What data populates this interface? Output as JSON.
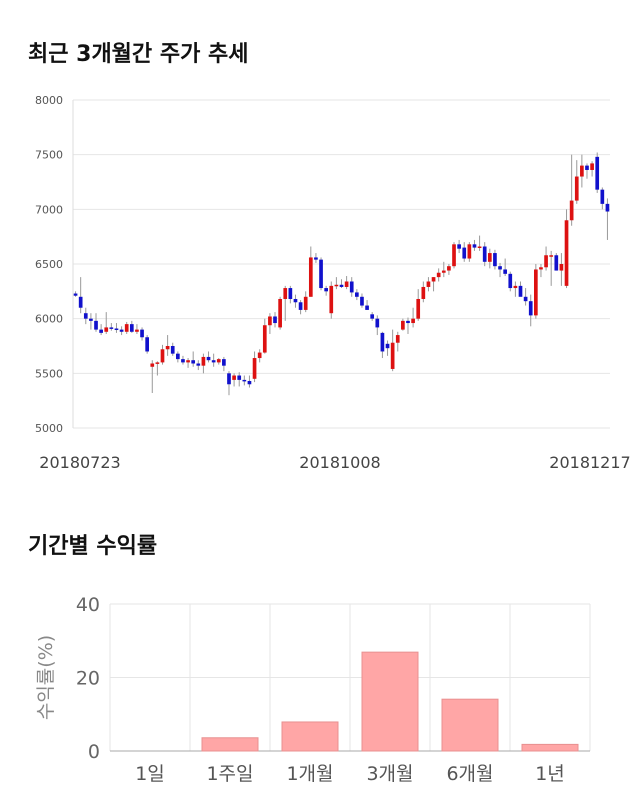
{
  "section1": {
    "title": "최근 3개월간 주가 추세"
  },
  "section2": {
    "title": "기간별 수익률"
  },
  "chart_data": [
    {
      "type": "candlestick",
      "ylim": [
        5000,
        8000
      ],
      "yticks": [
        5000,
        5500,
        6000,
        6500,
        7000,
        7500,
        8000
      ],
      "xticks": [
        "20180723",
        "20181008",
        "20181217"
      ],
      "grid": true,
      "colors": {
        "up": "#dd1111",
        "down": "#1111cc",
        "wick": "#999999",
        "grid": "#e6e6e6"
      },
      "ohlc": [
        [
          6230,
          6250,
          6200,
          6210
        ],
        [
          6200,
          6380,
          6050,
          6100
        ],
        [
          6050,
          6100,
          5950,
          6000
        ],
        [
          6000,
          6050,
          5900,
          5980
        ],
        [
          5980,
          6050,
          5880,
          5900
        ],
        [
          5900,
          5950,
          5850,
          5870
        ],
        [
          5880,
          6060,
          5860,
          5920
        ],
        [
          5920,
          5960,
          5890,
          5910
        ],
        [
          5910,
          5960,
          5870,
          5900
        ],
        [
          5900,
          5930,
          5850,
          5880
        ],
        [
          5880,
          5970,
          5860,
          5950
        ],
        [
          5950,
          5980,
          5870,
          5880
        ],
        [
          5880,
          5950,
          5860,
          5900
        ],
        [
          5900,
          5920,
          5800,
          5830
        ],
        [
          5830,
          5850,
          5680,
          5700
        ],
        [
          5560,
          5620,
          5320,
          5590
        ],
        [
          5590,
          5610,
          5480,
          5600
        ],
        [
          5600,
          5760,
          5580,
          5720
        ],
        [
          5720,
          5850,
          5660,
          5750
        ],
        [
          5750,
          5780,
          5660,
          5680
        ],
        [
          5680,
          5700,
          5600,
          5630
        ],
        [
          5630,
          5660,
          5580,
          5600
        ],
        [
          5600,
          5640,
          5550,
          5620
        ],
        [
          5620,
          5700,
          5560,
          5590
        ],
        [
          5590,
          5620,
          5530,
          5570
        ],
        [
          5570,
          5680,
          5500,
          5650
        ],
        [
          5650,
          5700,
          5600,
          5620
        ],
        [
          5620,
          5680,
          5560,
          5600
        ],
        [
          5600,
          5640,
          5580,
          5630
        ],
        [
          5630,
          5650,
          5520,
          5570
        ],
        [
          5500,
          5520,
          5300,
          5400
        ],
        [
          5440,
          5500,
          5380,
          5480
        ],
        [
          5480,
          5510,
          5380,
          5440
        ],
        [
          5440,
          5480,
          5390,
          5430
        ],
        [
          5430,
          5480,
          5370,
          5400
        ],
        [
          5450,
          5700,
          5420,
          5640
        ],
        [
          5640,
          5720,
          5600,
          5690
        ],
        [
          5690,
          6000,
          5680,
          5940
        ],
        [
          5940,
          6050,
          5860,
          6020
        ],
        [
          6020,
          6060,
          5920,
          5960
        ],
        [
          5920,
          6200,
          5900,
          6180
        ],
        [
          6180,
          6300,
          5980,
          6280
        ],
        [
          6280,
          6300,
          6140,
          6180
        ],
        [
          6180,
          6220,
          6100,
          6150
        ],
        [
          6150,
          6170,
          6040,
          6080
        ],
        [
          6080,
          6250,
          6060,
          6200
        ],
        [
          6200,
          6660,
          6200,
          6560
        ],
        [
          6560,
          6600,
          6510,
          6540
        ],
        [
          6540,
          6560,
          6260,
          6280
        ],
        [
          6280,
          6300,
          6210,
          6250
        ],
        [
          6050,
          6340,
          6000,
          6300
        ],
        [
          6300,
          6380,
          6270,
          6310
        ],
        [
          6310,
          6360,
          6280,
          6290
        ],
        [
          6290,
          6390,
          6270,
          6340
        ],
        [
          6340,
          6380,
          6200,
          6240
        ],
        [
          6240,
          6270,
          6170,
          6200
        ],
        [
          6200,
          6230,
          6100,
          6120
        ],
        [
          6120,
          6170,
          6080,
          6080
        ],
        [
          6040,
          6060,
          5980,
          6000
        ],
        [
          6000,
          6030,
          5850,
          5920
        ],
        [
          5870,
          5880,
          5640,
          5700
        ],
        [
          5770,
          5800,
          5660,
          5730
        ],
        [
          5540,
          5900,
          5520,
          5780
        ],
        [
          5780,
          5880,
          5700,
          5850
        ],
        [
          5900,
          6000,
          5890,
          5980
        ],
        [
          5980,
          6010,
          5860,
          5960
        ],
        [
          5960,
          6100,
          5920,
          6000
        ],
        [
          6000,
          6270,
          5980,
          6180
        ],
        [
          6180,
          6340,
          6150,
          6290
        ],
        [
          6290,
          6380,
          6250,
          6340
        ],
        [
          6340,
          6380,
          6250,
          6380
        ],
        [
          6380,
          6460,
          6340,
          6420
        ],
        [
          6420,
          6520,
          6380,
          6440
        ],
        [
          6440,
          6500,
          6400,
          6480
        ],
        [
          6480,
          6700,
          6460,
          6680
        ],
        [
          6680,
          6720,
          6600,
          6640
        ],
        [
          6650,
          6700,
          6520,
          6550
        ],
        [
          6550,
          6700,
          6520,
          6680
        ],
        [
          6680,
          6720,
          6620,
          6650
        ],
        [
          6650,
          6760,
          6620,
          6660
        ],
        [
          6660,
          6700,
          6480,
          6520
        ],
        [
          6520,
          6640,
          6460,
          6600
        ],
        [
          6600,
          6630,
          6450,
          6480
        ],
        [
          6480,
          6510,
          6380,
          6450
        ],
        [
          6450,
          6550,
          6390,
          6410
        ],
        [
          6410,
          6430,
          6250,
          6280
        ],
        [
          6280,
          6340,
          6200,
          6300
        ],
        [
          6300,
          6340,
          6220,
          6200
        ],
        [
          6200,
          6280,
          6120,
          6160
        ],
        [
          6160,
          6220,
          5930,
          6030
        ],
        [
          6030,
          6500,
          6000,
          6450
        ],
        [
          6450,
          6500,
          6380,
          6470
        ],
        [
          6470,
          6660,
          6440,
          6580
        ],
        [
          6580,
          6620,
          6300,
          6580
        ],
        [
          6580,
          6600,
          6440,
          6440
        ],
        [
          6440,
          6600,
          6300,
          6500
        ],
        [
          6300,
          7000,
          6280,
          6900
        ],
        [
          6900,
          7500,
          6850,
          7080
        ],
        [
          7080,
          7450,
          7050,
          7300
        ],
        [
          7300,
          7500,
          7200,
          7400
        ],
        [
          7400,
          7420,
          7280,
          7360
        ],
        [
          7360,
          7440,
          7300,
          7420
        ],
        [
          7480,
          7520,
          7150,
          7180
        ],
        [
          7180,
          7200,
          7000,
          7050
        ],
        [
          7050,
          7100,
          6720,
          6980
        ]
      ]
    },
    {
      "type": "bar",
      "ylabel": "수익률(%)",
      "ylim": [
        0,
        40
      ],
      "yticks": [
        0,
        20,
        40
      ],
      "categories": [
        "1일",
        "1주일",
        "1개월",
        "3개월",
        "6개월",
        "1년"
      ],
      "values": [
        0,
        3.6,
        7.9,
        26.9,
        14.1,
        1.8
      ],
      "colors": {
        "bar": "#ffa6a6",
        "grid": "#e6e6e6"
      }
    }
  ]
}
